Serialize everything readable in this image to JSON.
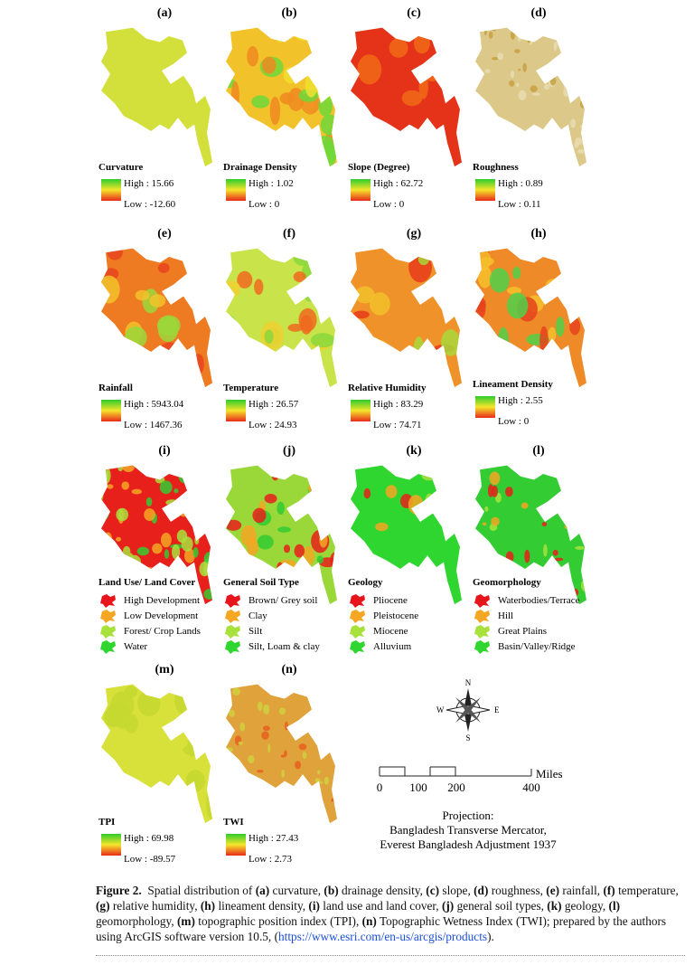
{
  "panels": [
    {
      "label": "(a)",
      "title": "Curvature",
      "high": "High : 15.66",
      "low": "Low : -12.60"
    },
    {
      "label": "(b)",
      "title": "Drainage Density",
      "high": "High : 1.02",
      "low": "Low : 0"
    },
    {
      "label": "(c)",
      "title": "Slope (Degree)",
      "high": "High : 62.72",
      "low": "Low : 0"
    },
    {
      "label": "(d)",
      "title": "Roughness",
      "high": "High : 0.89",
      "low": "Low : 0.11"
    },
    {
      "label": "(e)",
      "title": "Rainfall",
      "high": "High : 5943.04",
      "low": "Low : 1467.36"
    },
    {
      "label": "(f)",
      "title": "Temperature",
      "high": "High : 26.57",
      "low": "Low : 24.93"
    },
    {
      "label": "(g)",
      "title": "Relative Humidity",
      "high": "High : 83.29",
      "low": "Low : 74.71"
    },
    {
      "label": "(h)",
      "title": "Lineament Density",
      "high": "High : 2.55",
      "low": "Low : 0"
    },
    {
      "label": "(i)",
      "title": "Land Use/ Land Cover",
      "items": [
        "High Development",
        "Low Development",
        "Forest/ Crop Lands",
        "Water"
      ]
    },
    {
      "label": "(j)",
      "title": "General Soil Type",
      "items": [
        "Brown/ Grey soil",
        "Clay",
        "Silt",
        "Silt, Loam & clay"
      ]
    },
    {
      "label": "(k)",
      "title": "Geology",
      "items": [
        "Pliocene",
        "Pleistocene",
        "Miocene",
        "Alluvium"
      ]
    },
    {
      "label": "(l)",
      "title": "Geomorphology",
      "items": [
        "Waterbodies/Terrace",
        "Hill",
        "Great Plains",
        "Basin/Valley/Ridge"
      ]
    },
    {
      "label": "(m)",
      "title": "TPI",
      "high": "High : 69.98",
      "low": "Low : -89.57"
    },
    {
      "label": "(n)",
      "title": "TWI",
      "high": "High : 27.43",
      "low": "Low : 2.73"
    }
  ],
  "compass": {
    "n": "N",
    "s": "S",
    "e": "E",
    "w": "W"
  },
  "scale": {
    "ticks": [
      "0",
      "100",
      "200",
      "400"
    ],
    "unit": "Miles"
  },
  "projection": [
    "Projection:",
    "Bangladesh Transverse Mercator,",
    "Everest Bangladesh Adjustment 1937"
  ],
  "caption": {
    "label": "Figure 2.",
    "intro": "Spatial distribution of",
    "items": [
      {
        "key": "(a)",
        "text": "curvature,"
      },
      {
        "key": "(b)",
        "text": "drainage density,"
      },
      {
        "key": "(c)",
        "text": "slope,"
      },
      {
        "key": "(d)",
        "text": "roughness,"
      },
      {
        "key": "(e)",
        "text": "rainfall,"
      },
      {
        "key": "(f)",
        "text": "temperature,"
      },
      {
        "key": "(g)",
        "text": "relative humidity,"
      },
      {
        "key": "(h)",
        "text": "lineament density,"
      },
      {
        "key": "(i)",
        "text": "land use and land cover,"
      },
      {
        "key": "(j)",
        "text": "general soil types,"
      },
      {
        "key": "(k)",
        "text": "geology,"
      },
      {
        "key": "(l)",
        "text": "geomorphology,"
      },
      {
        "key": "(m)",
        "text": "topographic position index (TPI),"
      },
      {
        "key": "(n)",
        "text": "Topographic Wetness Index (TWI); prepared by the authors using ArcGIS software version 10.5, ("
      }
    ],
    "link": "https://www.esri.com/en-us/arcgis/products",
    "end": ")."
  }
}
